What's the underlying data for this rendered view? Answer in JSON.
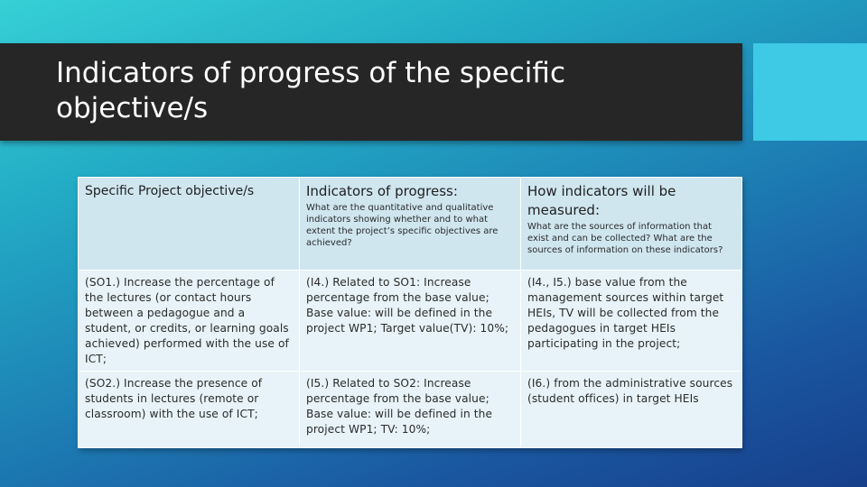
{
  "slide": {
    "title": "Indicators of progress of the specific objective/s"
  },
  "table": {
    "headers": [
      {
        "title": "Specific Project objective/s",
        "subtitle": ""
      },
      {
        "title": "Indicators of progress:",
        "subtitle": "What are the quantitative and qualitative indicators showing whether and to what extent the project’s specific objectives are achieved?"
      },
      {
        "title": "How indicators will be measured:",
        "subtitle": "What are the sources of information that exist and can be collected? What are the sources of information on these indicators?"
      }
    ],
    "rows": [
      [
        "(SO1.) Increase the percentage of the lectures (or contact hours between a pedagogue and a student, or credits, or learning goals achieved) performed with the use of ICT;",
        "(I4.) Related to SO1: Increase percentage from the base value; Base value: will be defined in the project WP1; Target value(TV): 10%;",
        "(I4., I5.) base value from the management sources within target HEIs, TV will be collected from the pedagogues in target HEIs participating in the project;"
      ],
      [
        "(SO2.) Increase the presence of students in lectures (remote or classroom) with the use of ICT;",
        "(I5.) Related to SO2: Increase percentage from the base value; Base value: will be defined in the project WP1; TV: 10%;",
        "(I6.) from the administrative sources (student offices) in target HEIs"
      ]
    ]
  }
}
